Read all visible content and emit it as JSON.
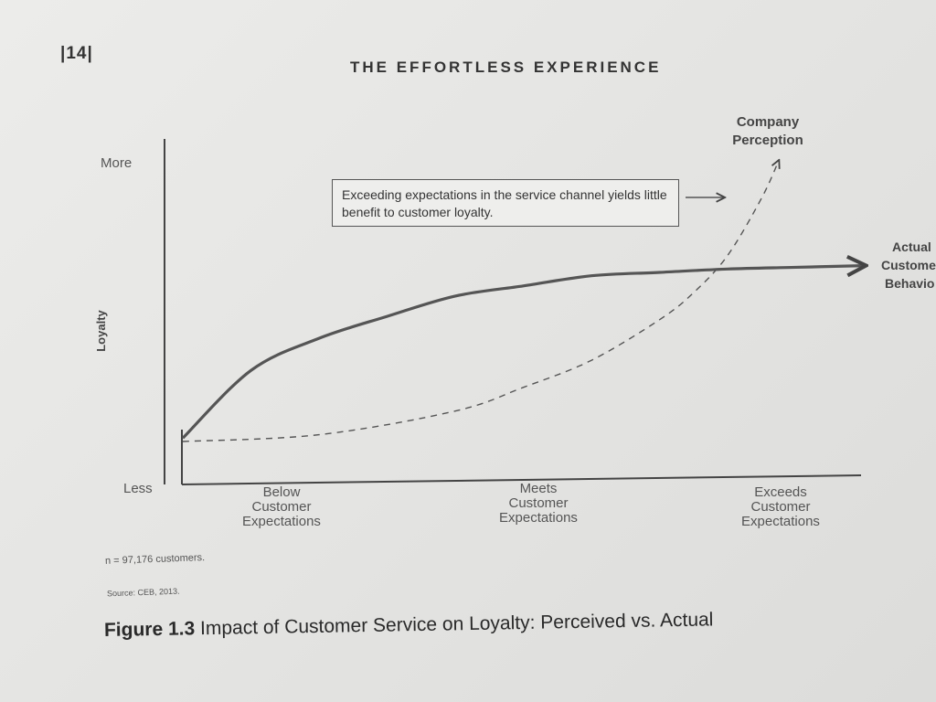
{
  "page": {
    "number": "|14|",
    "running_head": "THE EFFORTLESS EXPERIENCE",
    "note_n": "n = 97,176 customers.",
    "note_source": "Source: CEB, 2013.",
    "caption_prefix": "Figure 1.3",
    "caption_text": "Impact of Customer Service on Loyalty: Perceived vs. Actual"
  },
  "chart_data": {
    "type": "line",
    "title": "Impact of Customer Service on Loyalty: Perceived vs. Actual",
    "ylabel": "Loyalty",
    "y_ticks": [
      "Less",
      "More"
    ],
    "ylim": [
      0,
      1
    ],
    "xlim": [
      0,
      1
    ],
    "x_ticks": [
      {
        "x": 0.145,
        "label": [
          "Below",
          "Customer",
          "Expectations"
        ]
      },
      {
        "x": 0.52,
        "label": [
          "Meets",
          "Customer",
          "Expectations"
        ]
      },
      {
        "x": 0.88,
        "label": [
          "Exceeds",
          "Customer",
          "Expectations"
        ]
      }
    ],
    "series": [
      {
        "name": "Actual Customer Behavior",
        "label_lines": [
          "Actual",
          "Custome",
          "Behavio"
        ],
        "style": "solid",
        "x": [
          0,
          0.1,
          0.2,
          0.3,
          0.4,
          0.5,
          0.6,
          0.7,
          0.8,
          0.9,
          1.0
        ],
        "y": [
          0.11,
          0.31,
          0.405,
          0.47,
          0.53,
          0.56,
          0.59,
          0.6,
          0.61,
          0.615,
          0.62
        ]
      },
      {
        "name": "Company Perception",
        "label_lines": [
          "Company",
          "Perception"
        ],
        "style": "dashed",
        "x": [
          0,
          0.2,
          0.4,
          0.5,
          0.6,
          0.7,
          0.75,
          0.8,
          0.85,
          0.875
        ],
        "y": [
          0.1,
          0.12,
          0.19,
          0.26,
          0.34,
          0.46,
          0.54,
          0.65,
          0.82,
          0.93
        ]
      }
    ],
    "annotation": "Exceeding expectations in the service channel yields little benefit to customer loyalty.",
    "colors": {
      "line": "#555555",
      "axis": "#444444"
    }
  }
}
